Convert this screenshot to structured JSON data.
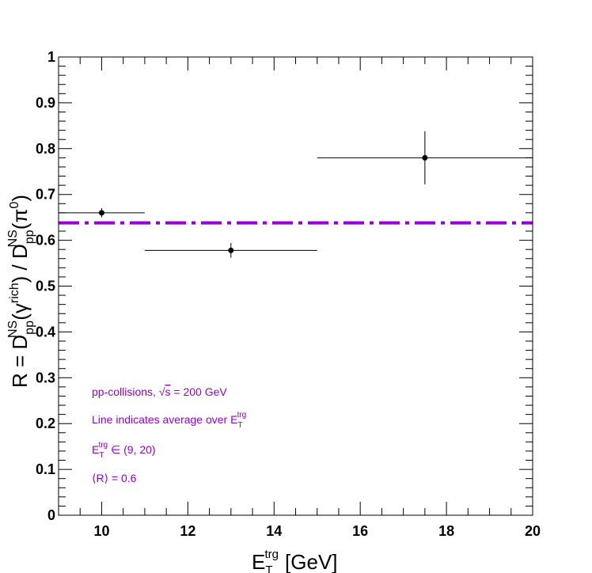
{
  "chart_data": {
    "type": "scatter",
    "title": "",
    "xlabel": {
      "base": "E",
      "sub": "T",
      "sup": "trg",
      "unit": "[GeV]"
    },
    "ylabel": "R = Dⁿˢpp(γrich) / Dⁿˢpp(π⁰)",
    "ylabel_parts": {
      "lhs": "R = D",
      "sup1": "NS",
      "sub1": "pp",
      "arg1": "(γ",
      "argsup1": "rich",
      "mid": ") / D",
      "sup2": "NS",
      "sub2": "pp",
      "arg2": "(π",
      "argsup2": "0",
      "end": ")"
    },
    "xlim": [
      9,
      20
    ],
    "ylim": [
      0,
      1
    ],
    "xticks": [
      10,
      12,
      14,
      16,
      18,
      20
    ],
    "xtick_labels": [
      "10",
      "12",
      "14",
      "16",
      "18",
      "20"
    ],
    "yticks": [
      0,
      0.1,
      0.2,
      0.3,
      0.4,
      0.5,
      0.6,
      0.7,
      0.8,
      0.9,
      1
    ],
    "ytick_labels": [
      "0",
      "0.1",
      "0.2",
      "0.3",
      "0.4",
      "0.5",
      "0.6",
      "0.7",
      "0.8",
      "0.9",
      "1"
    ],
    "grid": false,
    "points": [
      {
        "x": 10.0,
        "y": 0.66,
        "xlow": 9.0,
        "xhigh": 11.0,
        "yerr": 0.01
      },
      {
        "x": 13.0,
        "y": 0.578,
        "xlow": 11.0,
        "xhigh": 15.0,
        "yerr": 0.016
      },
      {
        "x": 17.5,
        "y": 0.78,
        "xlow": 15.0,
        "xhigh": 20.0,
        "yerr": 0.058
      }
    ],
    "average_line": {
      "y": 0.638,
      "color": "#9400d3",
      "style": "dash-dot"
    },
    "marker_color": "#000000",
    "annotations": {
      "line1_prefix": "pp-collisions, ",
      "line1_sqrt": "√",
      "line1_s": "s",
      "line1_suffix": " = 200 GeV",
      "line2_prefix": "Line indicates average over E",
      "line2_sub": "T",
      "line2_sup": "trg",
      "line3_base": "E",
      "line3_sub": "T",
      "line3_sup": "trg",
      "line3_suffix": " ∈ (9, 20)",
      "line4": "⟨R⟩ = 0.6",
      "color": "#9400d3"
    }
  }
}
